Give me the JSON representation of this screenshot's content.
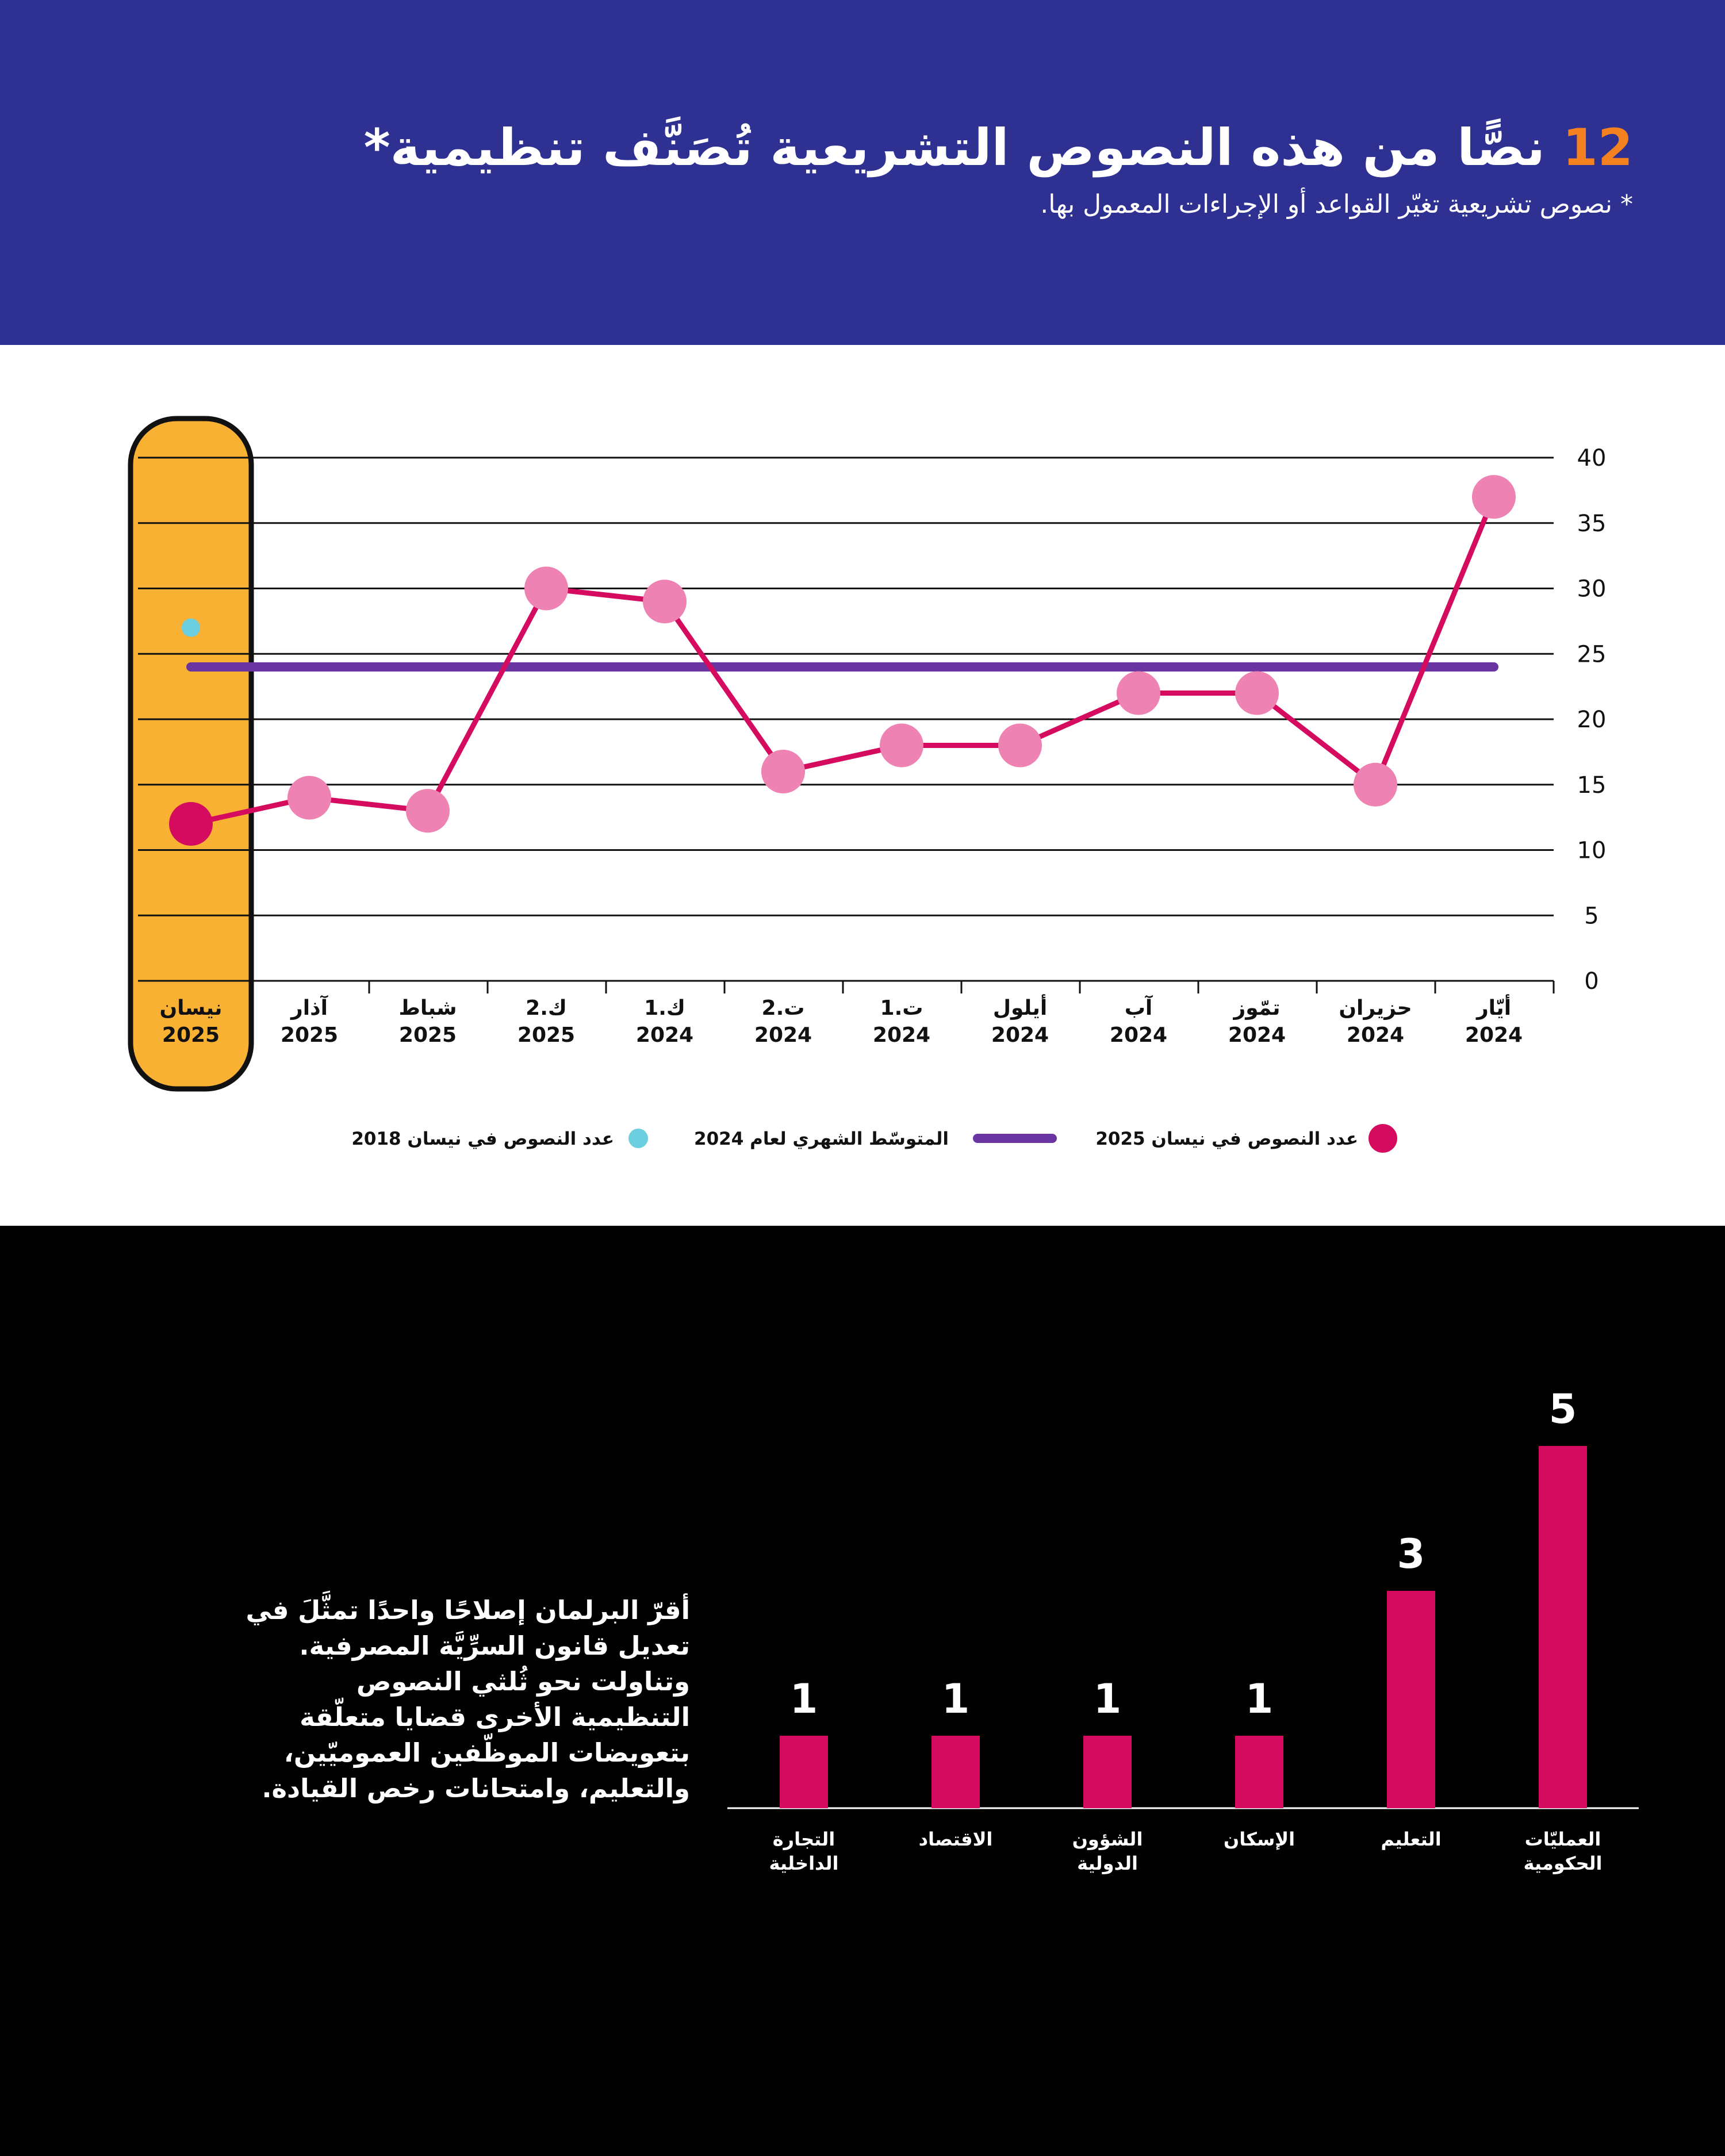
{
  "header": {
    "title_number": "12",
    "title_text": "نصًّا من هذه النصوص التشريعية تُصَنَّف تنظيمية*",
    "subtitle": "* نصوص تشريعية تغيّر القواعد أو الإجراءات المعمول بها."
  },
  "colors": {
    "header_bg": "#2e3192",
    "accent_orange": "#f58220",
    "line_pink": "#d40b5e",
    "marker_pink": "#ee82b2",
    "average_purple": "#6a35a0",
    "dot_2018_cyan": "#6ccfe0",
    "highlight_yellow": "#f8b133",
    "bar_pink": "#d40b5e"
  },
  "chart_data": [
    {
      "type": "line",
      "categories": [
        {
          "month": "أيّار",
          "year": "2024"
        },
        {
          "month": "حزيران",
          "year": "2024"
        },
        {
          "month": "تمّوز",
          "year": "2024"
        },
        {
          "month": "آب",
          "year": "2024"
        },
        {
          "month": "أيلول",
          "year": "2024"
        },
        {
          "month": "ت.1",
          "year": "2024"
        },
        {
          "month": "ت.2",
          "year": "2024"
        },
        {
          "month": "ك.1",
          "year": "2024"
        },
        {
          "month": "ك.2",
          "year": "2025"
        },
        {
          "month": "شباط",
          "year": "2025"
        },
        {
          "month": "آذار",
          "year": "2025"
        },
        {
          "month": "نيسان",
          "year": "2025"
        }
      ],
      "series": [
        {
          "name": "عدد النصوص في نيسان 2025",
          "values": [
            37,
            15,
            22,
            22,
            18,
            18,
            16,
            29,
            30,
            13,
            14,
            12
          ]
        }
      ],
      "average": {
        "name": "المتوسّط الشهري لعام 2024",
        "value": 24
      },
      "reference_point": {
        "name": "عدد النصوص في نيسان 2018",
        "value": 27,
        "category_index": 11
      },
      "highlight_category_index": 11,
      "y_ticks": [
        "0",
        "5",
        "10",
        "15",
        "20",
        "25",
        "30",
        "35",
        "40"
      ],
      "ylim": [
        0,
        40
      ],
      "grid": true,
      "legend_position": "bottom"
    },
    {
      "type": "bar",
      "categories": [
        [
          "العمليّات",
          "الحكومية"
        ],
        [
          "التعليم"
        ],
        [
          "الإسكان"
        ],
        [
          "الشؤون",
          "الدولية"
        ],
        [
          "الاقتصاد"
        ],
        [
          "التجارة",
          "الداخلية"
        ]
      ],
      "values": [
        5,
        3,
        1,
        1,
        1,
        1
      ]
    }
  ],
  "paragraph": {
    "lines": [
      "أقرّ البرلمان إصلاحًا واحدًا تمثَّلَ في",
      "تعديل قانون السرِّيَّة المصرفية.",
      "وتناولت نحو ثُلثي النصوص",
      "التنظيمية الأخرى قضايا متعلّقة",
      "بتعويضات الموظّفين العموميّين،",
      "والتعليم، وامتحانات رخص القيادة."
    ]
  }
}
